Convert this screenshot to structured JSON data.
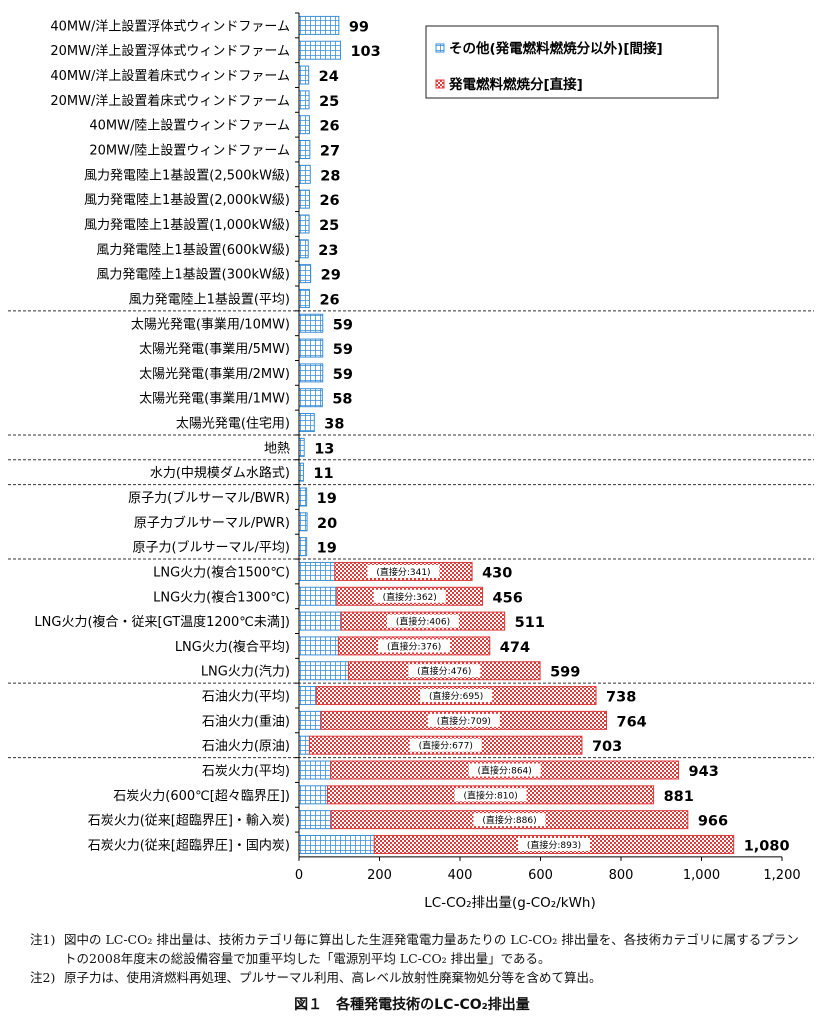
{
  "chart_data": {
    "type": "bar",
    "orientation": "horizontal",
    "stacked": true,
    "xlabel": "LC-CO₂排出量(g-CO₂/kWh)",
    "xlim": [
      0,
      1200
    ],
    "xticks": [
      "0",
      "200",
      "400",
      "600",
      "800",
      "1,000",
      "1,200"
    ],
    "legend": {
      "placement": "top-right",
      "entries": [
        {
          "label": "その他(発電燃料燃焼分以外)[間接]",
          "color": "#3a8fd8",
          "pattern": "grid"
        },
        {
          "label": "発電燃料燃焼分[直接]",
          "color": "#e03b3b",
          "pattern": "checker"
        }
      ]
    },
    "categories": [
      "40MW/洋上設置浮体式ウィンドファーム",
      "20MW/洋上設置浮体式ウィンドファーム",
      "40MW/洋上設置着床式ウィンドファーム",
      "20MW/洋上設置着床式ウィンドファーム",
      "40MW/陸上設置ウィンドファーム",
      "20MW/陸上設置ウィンドファーム",
      "風力発電陸上1基設置(2,500kW級)",
      "風力発電陸上1基設置(2,000kW級)",
      "風力発電陸上1基設置(1,000kW級)",
      "風力発電陸上1基設置(600kW級)",
      "風力発電陸上1基設置(300kW級)",
      "風力発電陸上1基設置(平均)",
      "太陽光発電(事業用/10MW)",
      "太陽光発電(事業用/5MW)",
      "太陽光発電(事業用/2MW)",
      "太陽光発電(事業用/1MW)",
      "太陽光発電(住宅用)",
      "地熱",
      "水力(中規模ダム水路式)",
      "原子力(ブルサーマル/BWR)",
      "原子力ブルサーマル/PWR)",
      "原子力(ブルサーマル/平均)",
      "LNG火力(複合1500℃)",
      "LNG火力(複合1300℃)",
      "LNG火力(複合・従来[GT温度1200℃未満])",
      "LNG火力(複合平均)",
      "LNG火力(汽力)",
      "石油火力(平均)",
      "石油火力(重油)",
      "石油火力(原油)",
      "石炭火力(平均)",
      "石炭火力(600℃[超々臨界圧])",
      "石炭火力(従来[超臨界圧]・輸入炭)",
      "石炭火力(従来[超臨界圧]・国内炭)"
    ],
    "series": [
      {
        "name": "その他(発電燃料燃焼分以外)[間接]",
        "values": [
          99,
          103,
          24,
          25,
          26,
          27,
          28,
          26,
          25,
          23,
          29,
          26,
          59,
          59,
          59,
          58,
          38,
          13,
          11,
          19,
          20,
          19,
          89,
          94,
          105,
          98,
          123,
          43,
          55,
          26,
          79,
          71,
          80,
          187
        ]
      },
      {
        "name": "発電燃料燃焼分[直接]",
        "values": [
          0,
          0,
          0,
          0,
          0,
          0,
          0,
          0,
          0,
          0,
          0,
          0,
          0,
          0,
          0,
          0,
          0,
          0,
          0,
          0,
          0,
          0,
          341,
          362,
          406,
          376,
          476,
          695,
          709,
          677,
          864,
          810,
          886,
          893
        ]
      }
    ],
    "totals": [
      "99",
      "103",
      "24",
      "25",
      "26",
      "27",
      "28",
      "26",
      "25",
      "23",
      "29",
      "26",
      "59",
      "59",
      "59",
      "58",
      "38",
      "13",
      "11",
      "19",
      "20",
      "19",
      "430",
      "456",
      "511",
      "474",
      "599",
      "738",
      "764",
      "703",
      "943",
      "881",
      "966",
      "1,080"
    ],
    "direct_labels": [
      "",
      "",
      "",
      "",
      "",
      "",
      "",
      "",
      "",
      "",
      "",
      "",
      "",
      "",
      "",
      "",
      "",
      "",
      "",
      "",
      "",
      "",
      "(直接分:341)",
      "(直接分:362)",
      "(直接分:406)",
      "(直接分:376)",
      "(直接分:476)",
      "(直接分:695)",
      "(直接分:709)",
      "(直接分:677)",
      "(直接分:864)",
      "(直接分:810)",
      "(直接分:886)",
      "(直接分:893)"
    ],
    "group_separators_after": [
      11,
      16,
      17,
      18,
      21,
      26,
      29
    ]
  },
  "notes": [
    {
      "tag": "注1)",
      "text": "図中の LC-CO₂ 排出量は、技術カテゴリ毎に算出した生涯発電電力量あたりの LC-CO₂ 排出量を、各技術カテゴリに属するプラントの2008年度末の総設備容量で加重平均した「電源別平均 LC-CO₂ 排出量」である。"
    },
    {
      "tag": "注2)",
      "text": "原子力は、使用済燃料再処理、プルサーマル利用、高レベル放射性廃棄物処分等を含めて算出。"
    }
  ],
  "caption": "図１　各種発電技術のLC-CO₂排出量"
}
